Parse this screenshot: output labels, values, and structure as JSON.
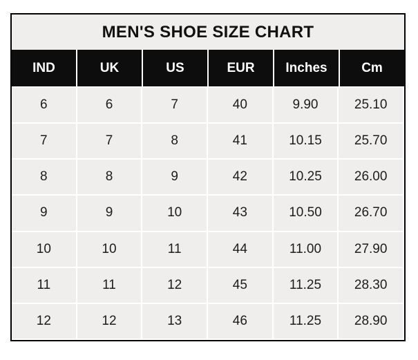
{
  "table": {
    "title": "MEN'S SHOE SIZE CHART",
    "columns": [
      "IND",
      "UK",
      "US",
      "EUR",
      "Inches",
      "Cm"
    ],
    "rows": [
      [
        "6",
        "6",
        "7",
        "40",
        "9.90",
        "25.10"
      ],
      [
        "7",
        "7",
        "8",
        "41",
        "10.15",
        "25.70"
      ],
      [
        "8",
        "8",
        "9",
        "42",
        "10.25",
        "26.00"
      ],
      [
        "9",
        "9",
        "10",
        "43",
        "10.50",
        "26.70"
      ],
      [
        "10",
        "10",
        "11",
        "44",
        "11.00",
        "27.90"
      ],
      [
        "11",
        "11",
        "12",
        "45",
        "11.25",
        "28.30"
      ],
      [
        "12",
        "12",
        "13",
        "46",
        "11.25",
        "28.90"
      ]
    ]
  },
  "colors": {
    "border": "#000000",
    "title_bg": "#efeeed",
    "title_text": "#111111",
    "header_bg": "#0d0d0d",
    "header_text": "#ffffff",
    "cell_bg": "#efeeed",
    "cell_text": "#1c1c1c",
    "grid_line": "#ffffff",
    "page_bg": "#ffffff"
  },
  "chart_data": {
    "type": "table",
    "title": "MEN'S SHOE SIZE CHART",
    "columns": [
      "IND",
      "UK",
      "US",
      "EUR",
      "Inches",
      "Cm"
    ],
    "rows": [
      [
        6,
        6,
        7,
        40,
        9.9,
        25.1
      ],
      [
        7,
        7,
        8,
        41,
        10.15,
        25.7
      ],
      [
        8,
        8,
        9,
        42,
        10.25,
        26.0
      ],
      [
        9,
        9,
        10,
        43,
        10.5,
        26.7
      ],
      [
        10,
        10,
        11,
        44,
        11.0,
        27.9
      ],
      [
        11,
        11,
        12,
        45,
        11.25,
        28.3
      ],
      [
        12,
        12,
        13,
        46,
        11.25,
        28.9
      ]
    ],
    "legend_position": "none",
    "grid": true
  }
}
